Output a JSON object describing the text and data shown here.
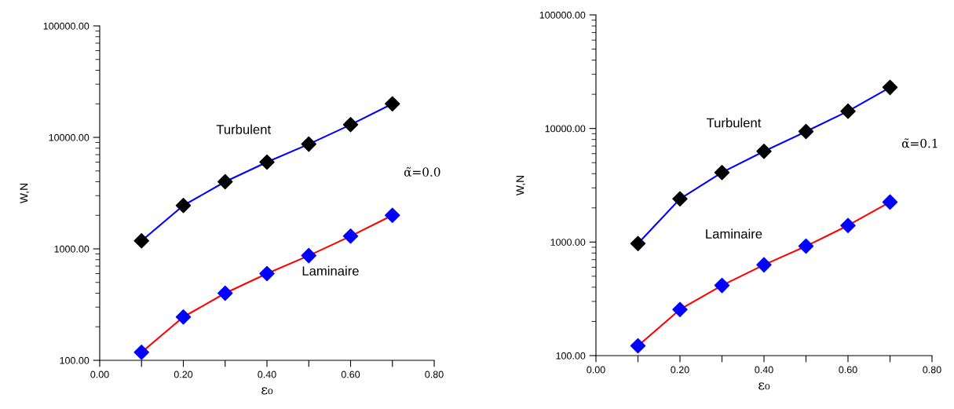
{
  "chart_data": [
    {
      "type": "line",
      "xlabel": "ε₀",
      "ylabel": "W,N",
      "log": "y",
      "marker": "diamond",
      "line_style": "solid",
      "x": [
        0.1,
        0.2,
        0.3,
        0.4,
        0.5,
        0.6,
        0.7
      ],
      "xlim": [
        0,
        0.8
      ],
      "xticks": [
        {
          "value": 0,
          "label": "0.00"
        },
        {
          "value": 0.1,
          "label": null
        },
        {
          "value": 0.2,
          "label": "0.20"
        },
        {
          "value": 0.3,
          "label": null
        },
        {
          "value": 0.4,
          "label": "0.40"
        },
        {
          "value": 0.5,
          "label": null
        },
        {
          "value": 0.6,
          "label": "0.60"
        },
        {
          "value": 0.7,
          "label": null
        },
        {
          "value": 0.8,
          "label": "0.80"
        }
      ],
      "ylim": [
        100,
        100000
      ],
      "yticks": [
        {
          "value": 100,
          "label": "100.00"
        },
        {
          "value": 1000,
          "label": "1000.00"
        },
        {
          "value": 10000,
          "label": "10000.00"
        },
        {
          "value": 100000,
          "label": "100000.00"
        }
      ],
      "series": [
        {
          "name": "Turbulent",
          "color": "#0000ff",
          "colors": [
            "#000000",
            "#000000",
            "#000000",
            "#000000",
            "#000000",
            "#000000",
            "#000000"
          ],
          "values": [
            1180,
            2450,
            4000,
            6000,
            8700,
            13000,
            20000
          ]
        },
        {
          "name": "Laminaire",
          "color": "#ff0000",
          "colors": [
            "#0000ff",
            "#0000ff",
            "#0000ff",
            "#0000ff",
            "#0000ff",
            "#0000ff",
            "#0000ff"
          ],
          "values": [
            118,
            245,
            400,
            600,
            870,
            1300,
            2000
          ]
        }
      ],
      "annotations": [
        "α̃=0.0"
      ]
    },
    {
      "type": "line",
      "xlabel": "ε₀",
      "ylabel": "W,N",
      "log": "y",
      "marker": "diamond",
      "line_style": "solid",
      "x": [
        0.1,
        0.2,
        0.3,
        0.4,
        0.5,
        0.6,
        0.7
      ],
      "xlim": [
        0,
        0.8
      ],
      "xticks": [
        {
          "value": 0,
          "label": "0.00"
        },
        {
          "value": 0.1,
          "label": null
        },
        {
          "value": 0.2,
          "label": "0.20"
        },
        {
          "value": 0.3,
          "label": null
        },
        {
          "value": 0.4,
          "label": "0.40"
        },
        {
          "value": 0.5,
          "label": null
        },
        {
          "value": 0.6,
          "label": "0.60"
        },
        {
          "value": 0.7,
          "label": null
        },
        {
          "value": 0.8,
          "label": "0.80"
        }
      ],
      "ylim": [
        100,
        100000
      ],
      "yticks": [
        {
          "value": 100,
          "label": "100.00"
        },
        {
          "value": 1000,
          "label": "1000.00"
        },
        {
          "value": 10000,
          "label": "10000.00"
        },
        {
          "value": 100000,
          "label": "100000.00"
        }
      ],
      "series": [
        {
          "name": "Turbulent",
          "color": "#0000ff",
          "colors": [
            "#000000",
            "#000000",
            "#000000",
            "#000000",
            "#000000",
            "#000000",
            "#000000"
          ],
          "values": [
            970,
            2400,
            4100,
            6300,
            9400,
            14200,
            23000
          ]
        },
        {
          "name": "Laminaire",
          "color": "#ff0000",
          "colors": [
            "#0000ff",
            "#0000ff",
            "#0000ff",
            "#0000ff",
            "#0000ff",
            "#0000ff",
            "#0000ff"
          ],
          "values": [
            122,
            255,
            415,
            630,
            920,
            1400,
            2250
          ]
        }
      ],
      "annotations": [
        "α̃=0.1"
      ]
    }
  ]
}
